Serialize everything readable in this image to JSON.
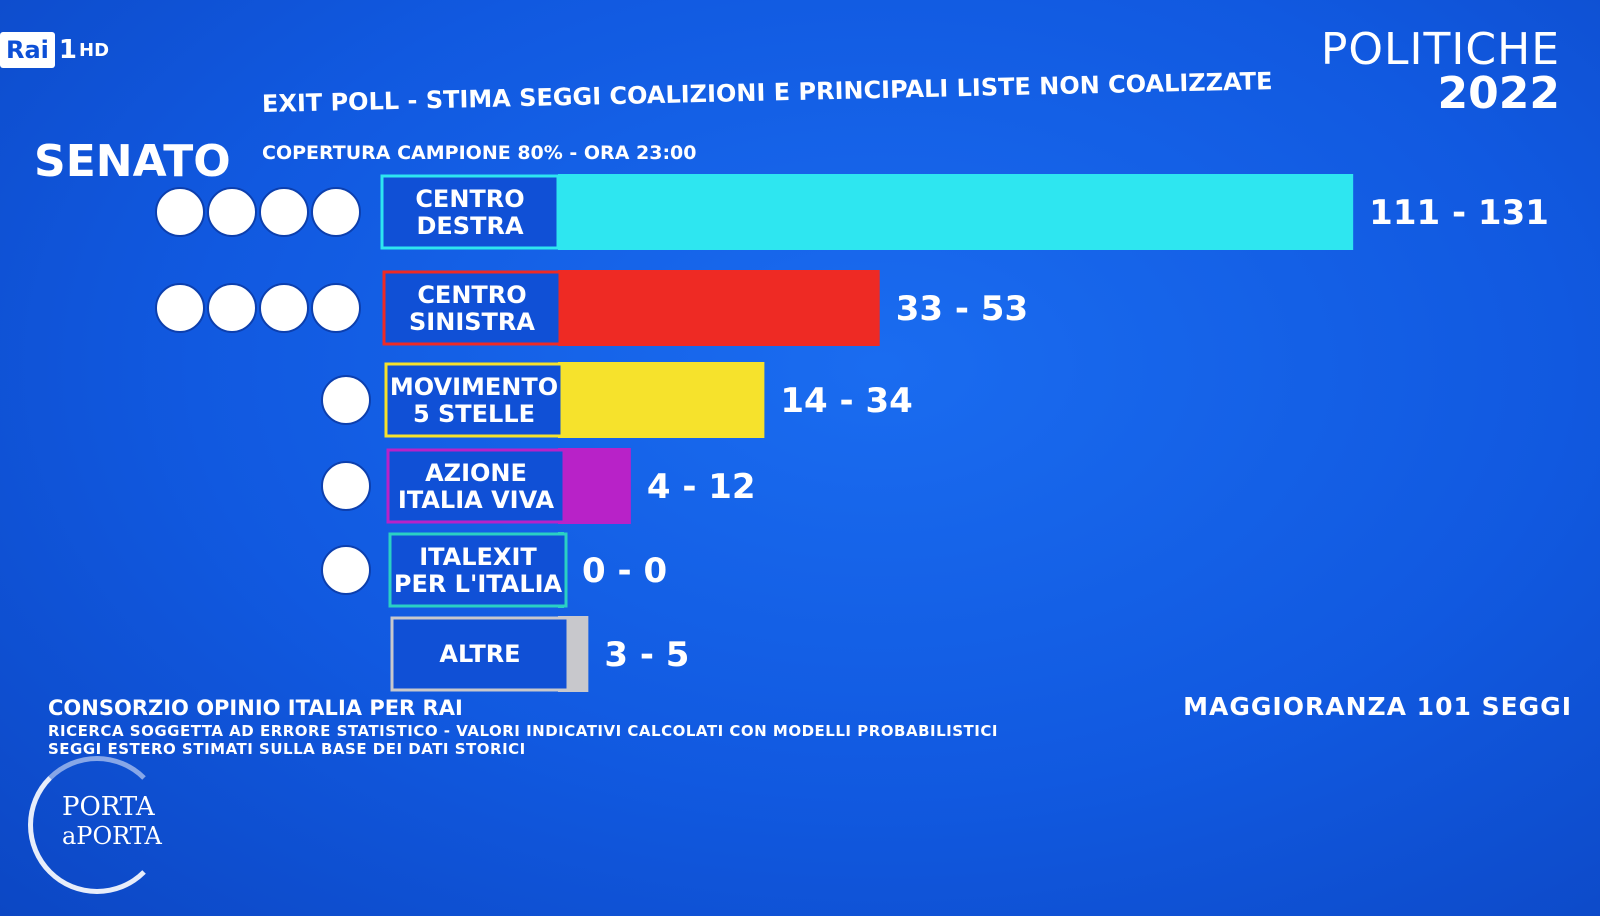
{
  "channel": {
    "brand": "Rai",
    "number": "1",
    "quality": "HD"
  },
  "top_right": {
    "line1": "POLITICHE",
    "line2": "2022"
  },
  "header": {
    "chamber": "SENATO",
    "subtitle": "EXIT POLL - STIMA SEGGI COALIZIONI E PRINCIPALI LISTE NON COALIZZATE",
    "coverage": "COPERTURA CAMPIONE 80% - ORA 23:00"
  },
  "footer": {
    "source": "CONSORZIO OPINIO ITALIA PER RAI",
    "note1": "RICERCA SOGGETTA AD ERRORE STATISTICO - VALORI INDICATIVI CALCOLATI CON MODELLI PROBABILISTICI",
    "note2": "SEGGI ESTERO STIMATI SULLA BASE DEI DATI STORICI",
    "majority": "MAGGIORANZA 101 SEGGI"
  },
  "show_logo": {
    "line1": "PORTA",
    "line2": "aPORTA"
  },
  "colors": {
    "background": "#1159e0",
    "label_box": "#1050d6"
  },
  "chart_data": {
    "type": "bar",
    "orientation": "horizontal",
    "categories": [
      [
        "CENTRO",
        "DESTRA"
      ],
      [
        "CENTRO",
        "SINISTRA"
      ],
      [
        "MOVIMENTO",
        "5 STELLE"
      ],
      [
        "AZIONE",
        "ITALIA VIVA"
      ],
      [
        "ITALEXIT",
        "PER L'ITALIA"
      ],
      [
        "ALTRE"
      ]
    ],
    "ranges": [
      {
        "min": 111,
        "max": 131,
        "label": "111 - 131",
        "color": "#2ee6f0",
        "logos": 4
      },
      {
        "min": 33,
        "max": 53,
        "label": "33 - 53",
        "color": "#ee2a24",
        "logos": 4
      },
      {
        "min": 14,
        "max": 34,
        "label": "14 - 34",
        "color": "#f6e22c",
        "logos": 1
      },
      {
        "min": 4,
        "max": 12,
        "label": "4 - 12",
        "color": "#b822c8",
        "logos": 1
      },
      {
        "min": 0,
        "max": 0,
        "label": "0 - 0",
        "color": "#2ad0c4",
        "logos": 1
      },
      {
        "min": 3,
        "max": 5,
        "label": "3 - 5",
        "color": "#c8c8cc",
        "logos": 0
      }
    ]
  }
}
